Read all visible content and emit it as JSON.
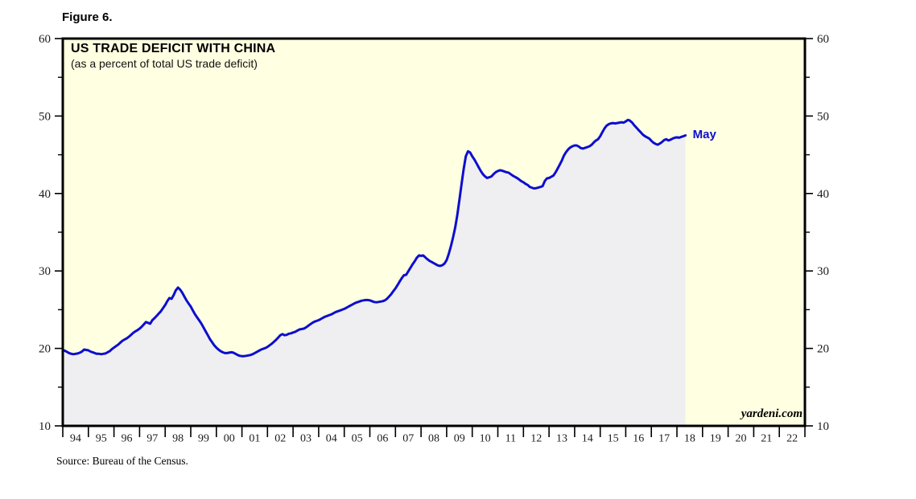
{
  "figure_label": "Figure 6.",
  "source_note": "Source: Bureau of the Census.",
  "chart_data": {
    "type": "area",
    "title": "US TRADE DEFICIT WITH CHINA",
    "subtitle": "(as a percent of total US trade deficit)",
    "watermark": "yardeni.com",
    "last_point_label": "May",
    "grid": false,
    "legend_position": "none",
    "ylim": [
      10,
      60
    ],
    "y_major_ticks": [
      10,
      20,
      30,
      40,
      50,
      60
    ],
    "y_minor_ticks": [
      15,
      25,
      35,
      45,
      55
    ],
    "x_range_years": [
      1994,
      2023
    ],
    "x_year_labels": [
      "94",
      "95",
      "96",
      "97",
      "98",
      "99",
      "00",
      "01",
      "02",
      "03",
      "04",
      "05",
      "06",
      "07",
      "08",
      "09",
      "10",
      "11",
      "12",
      "13",
      "14",
      "15",
      "16",
      "17",
      "18",
      "19",
      "20",
      "21",
      "22"
    ],
    "colors": {
      "line": "#0d0dd1",
      "area_fill": "#efeff1",
      "plot_background": "#ffffe1",
      "axis": "#000000",
      "tick_label": "#1b1b1b"
    },
    "series": [
      {
        "label": "US trade deficit with China as percent of total US trade deficit",
        "frequency": "monthly",
        "start": "1994-01",
        "end": "2018-05",
        "values": [
          19.8,
          19.7,
          19.55,
          19.4,
          19.3,
          19.25,
          19.3,
          19.35,
          19.45,
          19.6,
          19.85,
          19.8,
          19.75,
          19.6,
          19.5,
          19.4,
          19.3,
          19.3,
          19.25,
          19.3,
          19.35,
          19.5,
          19.65,
          19.9,
          20.1,
          20.3,
          20.5,
          20.75,
          21.0,
          21.15,
          21.3,
          21.5,
          21.75,
          22.0,
          22.2,
          22.35,
          22.55,
          22.8,
          23.1,
          23.4,
          23.3,
          23.2,
          23.65,
          23.9,
          24.2,
          24.5,
          24.8,
          25.2,
          25.6,
          26.1,
          26.5,
          26.4,
          26.9,
          27.5,
          27.85,
          27.6,
          27.2,
          26.7,
          26.2,
          25.8,
          25.4,
          24.9,
          24.4,
          24.0,
          23.6,
          23.2,
          22.7,
          22.2,
          21.7,
          21.2,
          20.8,
          20.4,
          20.1,
          19.85,
          19.65,
          19.5,
          19.4,
          19.4,
          19.45,
          19.5,
          19.45,
          19.3,
          19.15,
          19.05,
          19.0,
          19.0,
          19.05,
          19.1,
          19.15,
          19.25,
          19.4,
          19.55,
          19.7,
          19.85,
          19.95,
          20.05,
          20.2,
          20.4,
          20.6,
          20.85,
          21.1,
          21.4,
          21.7,
          21.85,
          21.7,
          21.75,
          21.9,
          21.95,
          22.05,
          22.15,
          22.3,
          22.45,
          22.5,
          22.55,
          22.7,
          22.9,
          23.1,
          23.3,
          23.45,
          23.55,
          23.65,
          23.8,
          23.95,
          24.1,
          24.2,
          24.3,
          24.4,
          24.55,
          24.7,
          24.8,
          24.9,
          25.0,
          25.1,
          25.25,
          25.4,
          25.55,
          25.7,
          25.85,
          25.95,
          26.05,
          26.15,
          26.2,
          26.25,
          26.25,
          26.2,
          26.1,
          26.0,
          25.95,
          26.0,
          26.05,
          26.1,
          26.2,
          26.4,
          26.7,
          27.0,
          27.4,
          27.75,
          28.2,
          28.65,
          29.1,
          29.45,
          29.5,
          29.95,
          30.4,
          30.85,
          31.25,
          31.7,
          32.0,
          31.95,
          32.0,
          31.75,
          31.5,
          31.3,
          31.15,
          31.0,
          30.85,
          30.7,
          30.65,
          30.75,
          30.95,
          31.4,
          32.2,
          33.2,
          34.3,
          35.6,
          37.2,
          39.2,
          41.2,
          43.2,
          44.8,
          45.45,
          45.3,
          44.8,
          44.4,
          43.9,
          43.4,
          42.9,
          42.5,
          42.2,
          42.0,
          42.1,
          42.2,
          42.5,
          42.75,
          42.9,
          43.0,
          42.95,
          42.85,
          42.75,
          42.7,
          42.5,
          42.3,
          42.15,
          42.0,
          41.8,
          41.6,
          41.45,
          41.25,
          41.1,
          40.85,
          40.75,
          40.65,
          40.7,
          40.77,
          40.85,
          40.95,
          41.6,
          41.95,
          42.0,
          42.15,
          42.3,
          42.7,
          43.2,
          43.7,
          44.25,
          44.9,
          45.35,
          45.7,
          45.95,
          46.1,
          46.2,
          46.2,
          46.05,
          45.85,
          45.8,
          45.9,
          46.0,
          46.1,
          46.3,
          46.6,
          46.85,
          47.0,
          47.4,
          47.9,
          48.4,
          48.75,
          48.95,
          49.05,
          49.1,
          49.05,
          49.1,
          49.15,
          49.2,
          49.15,
          49.3,
          49.5,
          49.4,
          49.15,
          48.8,
          48.5,
          48.2,
          47.9,
          47.6,
          47.4,
          47.25,
          47.1,
          46.8,
          46.55,
          46.4,
          46.3,
          46.45,
          46.65,
          46.9,
          47.0,
          46.85,
          46.95,
          47.1,
          47.2,
          47.25,
          47.2,
          47.3,
          47.4,
          47.5
        ]
      }
    ]
  }
}
